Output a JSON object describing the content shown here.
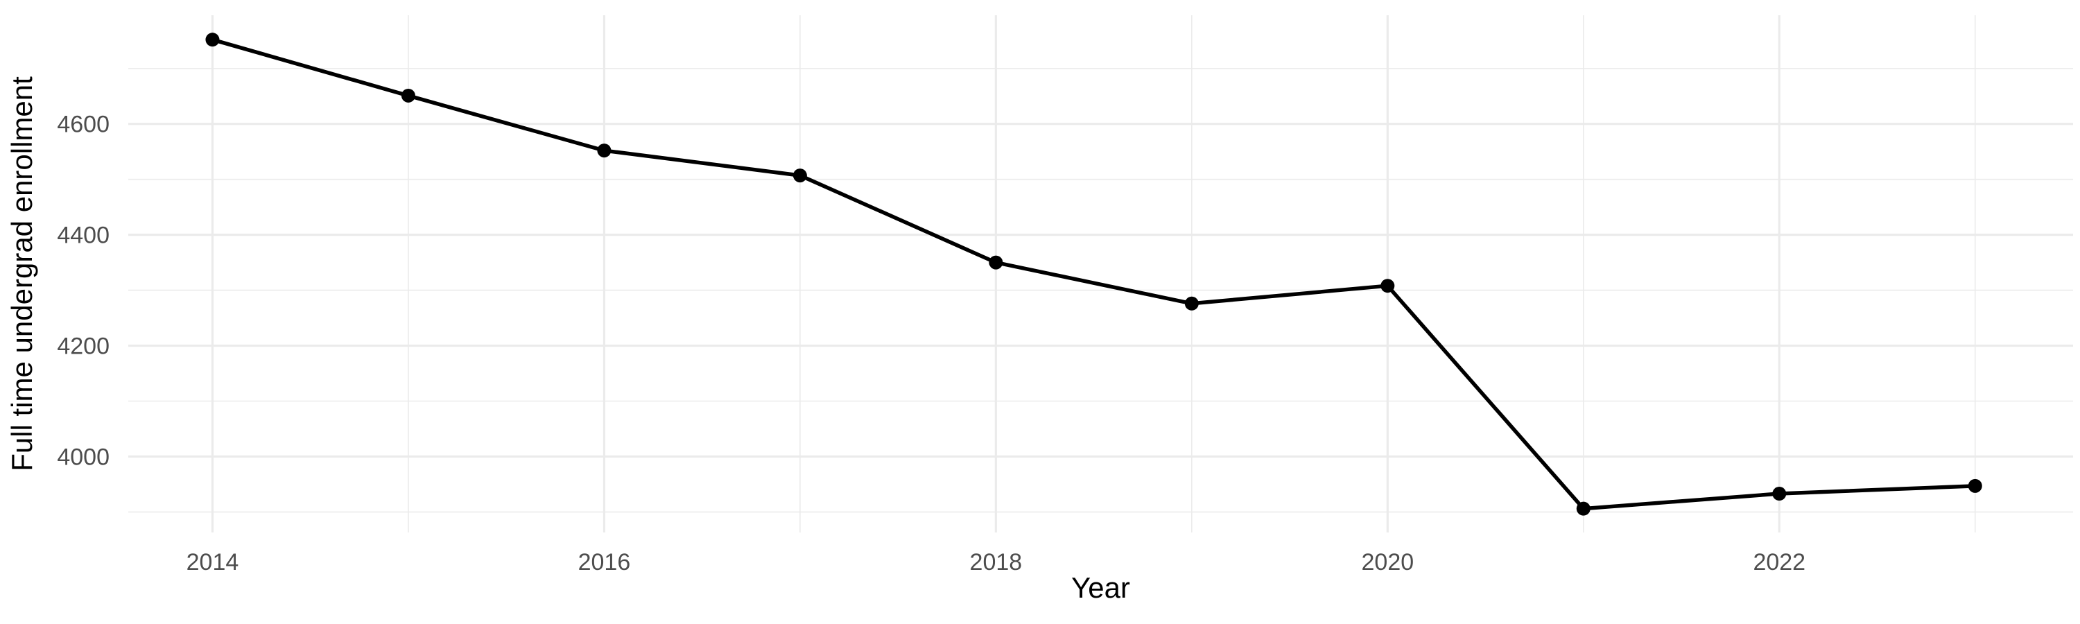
{
  "chart_data": {
    "type": "line",
    "title": "",
    "xlabel": "Year",
    "ylabel": "Full time undergrad enrollment",
    "series": [
      {
        "name": "Full time undergrad enrollment",
        "x": [
          2014,
          2015,
          2016,
          2017,
          2018,
          2019,
          2020,
          2021,
          2022,
          2023
        ],
        "values": [
          4752,
          4651,
          4552,
          4507,
          4350,
          4276,
          4308,
          3906,
          3933,
          3947
        ]
      }
    ],
    "x_ticks_major": [
      2014,
      2016,
      2018,
      2020,
      2022
    ],
    "x_ticks_minor": [
      2015,
      2017,
      2019,
      2021,
      2023
    ],
    "y_ticks_major": [
      4000,
      4200,
      4400,
      4600
    ],
    "y_ticks_minor": [
      3900,
      4100,
      4300,
      4500,
      4700
    ],
    "xlim": [
      2013.57,
      2023.5
    ],
    "ylim": [
      3863,
      4796
    ],
    "grid": true,
    "legend": "none",
    "marker": "filled-circle",
    "colors": {
      "line": "#000000",
      "point": "#000000",
      "grid": "#EBEBEB",
      "tick_label": "#4D4D4D",
      "axis_title": "#000000",
      "background": "#FFFFFF"
    }
  }
}
